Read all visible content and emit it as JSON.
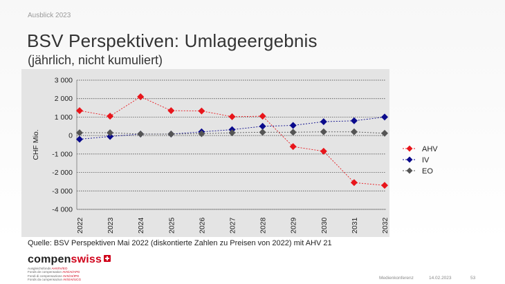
{
  "header": {
    "kicker": "Ausblick 2023",
    "title": "BSV Perspektiven: Umlageergebnis",
    "subtitle": "(jährlich, nicht kumuliert)"
  },
  "chart_data": {
    "type": "line",
    "ylabel": "CHF Mio.",
    "ylim": [
      -4000,
      3000
    ],
    "yticks": [
      3000,
      2000,
      1000,
      0,
      -1000,
      -2000,
      -3000,
      -4000
    ],
    "ytick_labels": [
      "3 000",
      "2 000",
      "1 000",
      "0",
      "-1 000",
      "-2 000",
      "-3 000",
      "-4 000"
    ],
    "categories": [
      "2022",
      "2023",
      "2024",
      "2025",
      "2026",
      "2027",
      "2028",
      "2029",
      "2030",
      "2031",
      "2032"
    ],
    "grid": "horizontal",
    "legend_position": "right",
    "series": [
      {
        "name": "AHV",
        "color": "#e8151b",
        "values": [
          1350,
          1050,
          2100,
          1350,
          1330,
          1020,
          1050,
          -600,
          -850,
          -2550,
          -2700
        ]
      },
      {
        "name": "IV",
        "color": "#0a0a8c",
        "values": [
          -200,
          -50,
          80,
          80,
          200,
          320,
          500,
          550,
          750,
          800,
          1000
        ]
      },
      {
        "name": "EO",
        "color": "#555555",
        "values": [
          150,
          150,
          80,
          80,
          100,
          150,
          180,
          180,
          200,
          200,
          120
        ]
      }
    ]
  },
  "source": "Quelle: BSV Perspektiven Mai 2022 (diskontierte Zahlen zu Preisen von 2022) mit AHV 21",
  "logo": {
    "word_a": "compen",
    "word_b": "swiss",
    "lines": [
      {
        "a": "Ausgleichsfonds ",
        "b": "AHV/IV/EO"
      },
      {
        "a": "Fonds de compensation ",
        "b": "AVS/AI/APG"
      },
      {
        "a": "Fondi di compensazione ",
        "b": "AVS/AI/IPG"
      },
      {
        "a": "Fonds da cumpensaziun ",
        "b": "AVS/AI/UCG"
      }
    ]
  },
  "footer": {
    "event": "Medienkonferenz",
    "date": "14.02.2023",
    "page": "53"
  }
}
